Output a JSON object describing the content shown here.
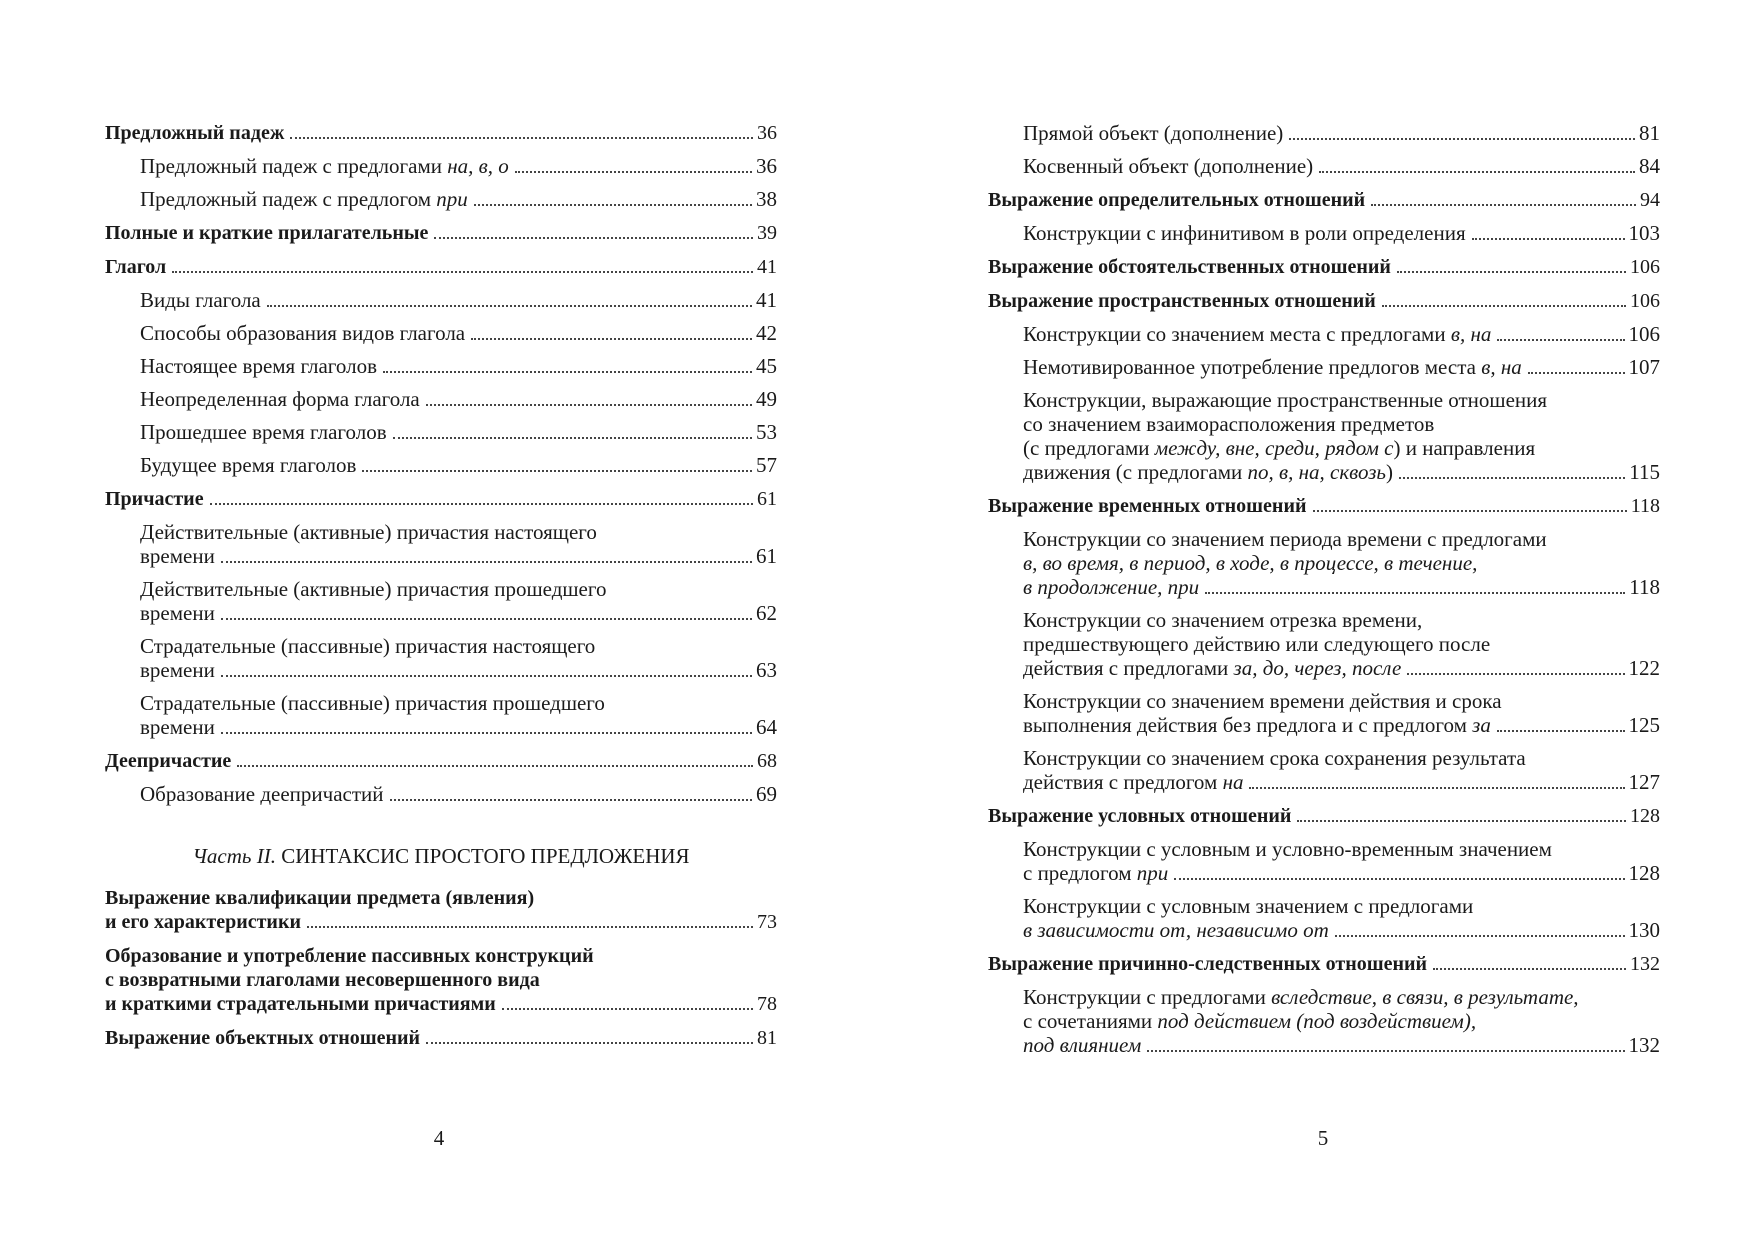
{
  "pages": [
    {
      "number": 4,
      "groups": [
        {
          "entries": [
            {
              "level": 0,
              "lines": [
                [
                  "Предложный падеж"
                ]
              ],
              "page": 36
            },
            {
              "level": 1,
              "lines": [
                [
                  "Предложный падеж с предлогами ",
                  {
                    "text": "на, в, о",
                    "italic": true
                  }
                ]
              ],
              "page": 36
            },
            {
              "level": 1,
              "lines": [
                [
                  "Предложный падеж с предлогом ",
                  {
                    "text": "при",
                    "italic": true
                  }
                ]
              ],
              "page": 38
            }
          ]
        },
        {
          "entries": [
            {
              "level": 0,
              "lines": [
                [
                  "Полные и краткие прилагательные"
                ]
              ],
              "page": 39
            }
          ]
        },
        {
          "entries": [
            {
              "level": 0,
              "lines": [
                [
                  "Глагол"
                ]
              ],
              "page": 41
            },
            {
              "level": 1,
              "lines": [
                [
                  "Виды глагола"
                ]
              ],
              "page": 41
            },
            {
              "level": 1,
              "lines": [
                [
                  "Способы образования видов глагола"
                ]
              ],
              "page": 42
            },
            {
              "level": 1,
              "lines": [
                [
                  "Настоящее время глаголов"
                ]
              ],
              "page": 45
            },
            {
              "level": 1,
              "lines": [
                [
                  "Неопределенная форма глагола"
                ]
              ],
              "page": 49
            },
            {
              "level": 1,
              "lines": [
                [
                  "Прошедшее время глаголов"
                ]
              ],
              "page": 53
            },
            {
              "level": 1,
              "lines": [
                [
                  "Будущее время глаголов"
                ]
              ],
              "page": 57
            }
          ]
        },
        {
          "entries": [
            {
              "level": 0,
              "lines": [
                [
                  "Причастие"
                ]
              ],
              "page": 61
            },
            {
              "level": 1,
              "lines": [
                [
                  "Действительные (активные) причастия настоящего"
                ],
                [
                  "времени"
                ]
              ],
              "page": 61
            },
            {
              "level": 1,
              "lines": [
                [
                  "Действительные (активные) причастия прошедшего"
                ],
                [
                  "времени"
                ]
              ],
              "page": 62
            },
            {
              "level": 1,
              "lines": [
                [
                  "Страдательные (пассивные) причастия настоящего"
                ],
                [
                  "времени"
                ]
              ],
              "page": 63
            },
            {
              "level": 1,
              "lines": [
                [
                  "Страдательные (пассивные) причастия прошедшего"
                ],
                [
                  "времени"
                ]
              ],
              "page": 64
            }
          ]
        },
        {
          "entries": [
            {
              "level": 0,
              "lines": [
                [
                  "Деепричастие"
                ]
              ],
              "page": 68
            },
            {
              "level": 1,
              "lines": [
                [
                  "Образование деепричастий"
                ]
              ],
              "page": 69
            }
          ]
        },
        {
          "heading": [
            {
              "text": "Часть II.",
              "italic": true
            },
            " СИНТАКСИС ПРОСТОГО ПРЕДЛОЖЕНИЯ"
          ]
        },
        {
          "entries": [
            {
              "level": 0,
              "lines": [
                [
                  "Выражение квалификации предмета (явления)"
                ],
                [
                  "и его характеристики"
                ]
              ],
              "page": 73
            }
          ]
        },
        {
          "entries": [
            {
              "level": 0,
              "lines": [
                [
                  "Образование и употребление пассивных конструкций"
                ],
                [
                  "с возвратными глаголами несовершенного вида"
                ],
                [
                  "и краткими страдательными причастиями"
                ]
              ],
              "page": 78
            }
          ]
        },
        {
          "entries": [
            {
              "level": 0,
              "lines": [
                [
                  "Выражение объектных отношений"
                ]
              ],
              "page": 81
            }
          ]
        }
      ]
    },
    {
      "number": 5,
      "groups": [
        {
          "entries": [
            {
              "level": 1,
              "lines": [
                [
                  "Прямой объект (дополнение)"
                ]
              ],
              "page": 81
            },
            {
              "level": 1,
              "lines": [
                [
                  "Косвенный объект (дополнение)"
                ]
              ],
              "page": 84
            }
          ]
        },
        {
          "entries": [
            {
              "level": 0,
              "lines": [
                [
                  "Выражение определительных отношений"
                ]
              ],
              "page": 94
            },
            {
              "level": 1,
              "lines": [
                [
                  "Конструкции с инфинитивом в роли определения"
                ]
              ],
              "page": 103
            }
          ]
        },
        {
          "entries": [
            {
              "level": 0,
              "lines": [
                [
                  "Выражение обстоятельственных отношений"
                ]
              ],
              "page": 106
            }
          ]
        },
        {
          "entries": [
            {
              "level": 0,
              "lines": [
                [
                  "Выражение пространственных отношений"
                ]
              ],
              "page": 106
            },
            {
              "level": 1,
              "lines": [
                [
                  "Конструкции со значением места с предлогами ",
                  {
                    "text": "в, на",
                    "italic": true
                  }
                ]
              ],
              "page": 106
            },
            {
              "level": 1,
              "lines": [
                [
                  "Немотивированное употребление предлогов места ",
                  {
                    "text": "в, на",
                    "italic": true
                  }
                ]
              ],
              "page": 107
            },
            {
              "level": 1,
              "lines": [
                [
                  "Конструкции, выражающие пространственные отношения"
                ],
                [
                  "со значением взаиморасположения предметов"
                ],
                [
                  "(с предлогами ",
                  {
                    "text": "между, вне, среди, рядом с",
                    "italic": true
                  },
                  ") и направления"
                ],
                [
                  "движения (с предлогами ",
                  {
                    "text": "по, в, на, сквозь",
                    "italic": true
                  },
                  ")"
                ]
              ],
              "page": 115
            }
          ]
        },
        {
          "entries": [
            {
              "level": 0,
              "lines": [
                [
                  "Выражение временных отношений"
                ]
              ],
              "page": 118
            },
            {
              "level": 1,
              "lines": [
                [
                  "Конструкции со значением периода времени с предлогами"
                ],
                [
                  {
                    "text": "в, во время, в период, в ходе, в процессе, в течение,",
                    "italic": true
                  }
                ],
                [
                  {
                    "text": "в продолжение, при",
                    "italic": true
                  }
                ]
              ],
              "page": 118
            },
            {
              "level": 1,
              "lines": [
                [
                  "Конструкции со значением отрезка времени,"
                ],
                [
                  "предшествующего действию или следующего после"
                ],
                [
                  "действия с предлогами ",
                  {
                    "text": "за, до, через, после",
                    "italic": true
                  }
                ]
              ],
              "page": 122
            },
            {
              "level": 1,
              "lines": [
                [
                  "Конструкции со значением времени действия и срока"
                ],
                [
                  "выполнения действия без предлога и с предлогом ",
                  {
                    "text": "за",
                    "italic": true
                  }
                ]
              ],
              "page": 125
            },
            {
              "level": 1,
              "lines": [
                [
                  "Конструкции со значением срока сохранения результата"
                ],
                [
                  "действия с предлогом ",
                  {
                    "text": "на",
                    "italic": true
                  }
                ]
              ],
              "page": 127
            }
          ]
        },
        {
          "entries": [
            {
              "level": 0,
              "lines": [
                [
                  "Выражение условных отношений"
                ]
              ],
              "page": 128
            },
            {
              "level": 1,
              "lines": [
                [
                  "Конструкции с условным и условно-временным значением"
                ],
                [
                  "с предлогом ",
                  {
                    "text": "при",
                    "italic": true
                  }
                ]
              ],
              "page": 128
            },
            {
              "level": 1,
              "lines": [
                [
                  "Конструкции с условным значением с предлогами"
                ],
                [
                  {
                    "text": "в зависимости от, независимо от",
                    "italic": true
                  }
                ]
              ],
              "page": 130
            }
          ]
        },
        {
          "entries": [
            {
              "level": 0,
              "lines": [
                [
                  "Выражение причинно-следственных отношений"
                ]
              ],
              "page": 132
            },
            {
              "level": 1,
              "lines": [
                [
                  "Конструкции с предлогами ",
                  {
                    "text": "вследствие, в связи, в результате,",
                    "italic": true
                  }
                ],
                [
                  "с сочетаниями ",
                  {
                    "text": "под действием (под воздействием),",
                    "italic": true
                  }
                ],
                [
                  {
                    "text": "под влиянием",
                    "italic": true
                  }
                ]
              ],
              "page": 132
            }
          ]
        }
      ]
    }
  ]
}
